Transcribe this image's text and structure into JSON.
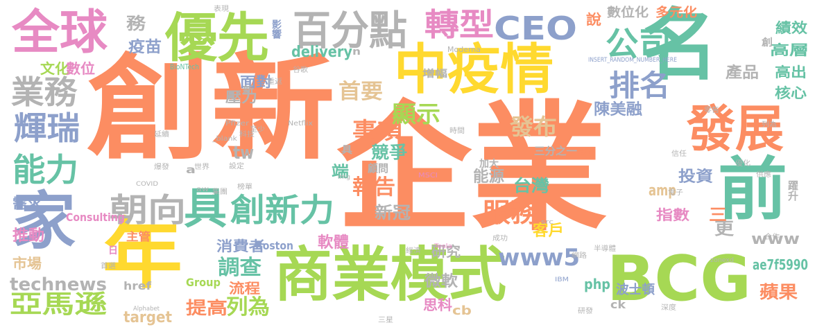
{
  "words": [
    {
      "t": "創新",
      "color": "#fc8d62"
    },
    {
      "t": "企業",
      "color": "#fc8d62"
    },
    {
      "t": "商業模式",
      "color": "#a6d854"
    },
    {
      "t": "名",
      "color": "#66c2a5"
    },
    {
      "t": "中疫情",
      "color": "#ffd92f"
    },
    {
      "t": "優先",
      "color": "#a6d854"
    },
    {
      "t": "全球",
      "color": "#e78ac3"
    },
    {
      "t": "家",
      "color": "#8da0cb"
    },
    {
      "t": "年",
      "color": "#ffd92f"
    },
    {
      "t": "BCG",
      "color": "#a6d854"
    },
    {
      "t": "前",
      "color": "#66c2a5"
    },
    {
      "t": "發展",
      "color": "#fc8d62"
    },
    {
      "t": "百分點",
      "color": "#b3b3b3"
    },
    {
      "t": "轉型",
      "color": "#e78ac3"
    },
    {
      "t": "CEO",
      "color": "#8da0cb"
    },
    {
      "t": "公司",
      "color": "#66c2a5"
    },
    {
      "t": "業務",
      "color": "#b3b3b3"
    },
    {
      "t": "輝瑞",
      "color": "#8da0cb"
    },
    {
      "t": "能力",
      "color": "#66c2a5"
    },
    {
      "t": "朝向",
      "color": "#b3b3b3"
    },
    {
      "t": "具",
      "color": "#66c2a5"
    },
    {
      "t": "創新力",
      "color": "#66c2a5"
    },
    {
      "t": "服務",
      "color": "#fc8d62"
    },
    {
      "t": "排名",
      "color": "#8da0cb"
    },
    {
      "t": "事項",
      "color": "#fc8d62"
    },
    {
      "t": "報告",
      "color": "#fc8d62"
    },
    {
      "t": "首要",
      "color": "#e5c494"
    },
    {
      "t": "顯示",
      "color": "#a6d854"
    },
    {
      "t": "發布",
      "color": "#e5c494"
    },
    {
      "t": "亞馬遜",
      "color": "#a6d854"
    },
    {
      "t": "technews",
      "color": "#b3b3b3"
    },
    {
      "t": "www5",
      "color": "#8da0cb"
    },
    {
      "t": "www",
      "color": "#b3b3b3"
    },
    {
      "t": "調查",
      "color": "#66c2a5"
    },
    {
      "t": "提高",
      "color": "#fc8d62"
    },
    {
      "t": "列為",
      "color": "#a6d854"
    },
    {
      "t": "流程",
      "color": "#fc8d62"
    },
    {
      "t": "微軟",
      "color": "#b3b3b3"
    },
    {
      "t": "投資",
      "color": "#8da0cb"
    },
    {
      "t": "指數",
      "color": "#e78ac3"
    },
    {
      "t": "蘋果",
      "color": "#fc8d62"
    },
    {
      "t": "台灣",
      "color": "#66c2a5"
    },
    {
      "t": "新冠",
      "color": "#b3b3b3"
    },
    {
      "t": "軟體",
      "color": "#e78ac3"
    },
    {
      "t": "能源",
      "color": "#b3b3b3"
    },
    {
      "t": "客戶",
      "color": "#ffd92f"
    },
    {
      "t": "消費者",
      "color": "#8da0cb"
    },
    {
      "t": "產品",
      "color": "#b3b3b3"
    },
    {
      "t": "高出",
      "color": "#66c2a5"
    },
    {
      "t": "核心",
      "color": "#66c2a5"
    },
    {
      "t": "績效",
      "color": "#66c2a5"
    },
    {
      "t": "高層",
      "color": "#66c2a5"
    },
    {
      "t": "數位化",
      "color": "#b3b3b3"
    },
    {
      "t": "多元化",
      "color": "#fc8d62"
    },
    {
      "t": "陳美融",
      "color": "#8da0cb"
    },
    {
      "t": "delivery",
      "color": "#66c2a5"
    },
    {
      "t": "tw",
      "color": "#b3b3b3"
    },
    {
      "t": "amp",
      "color": "#e5c494"
    },
    {
      "t": "ae7f5990",
      "color": "#66c2a5"
    },
    {
      "t": "php",
      "color": "#66c2a5"
    },
    {
      "t": "target",
      "color": "#e5c494"
    },
    {
      "t": "cb",
      "color": "#e5c494"
    },
    {
      "t": "ck",
      "color": "#b3b3b3"
    },
    {
      "t": "Group",
      "color": "#a6d854"
    },
    {
      "t": "href",
      "color": "#b3b3b3"
    },
    {
      "t": "Boston",
      "color": "#8da0cb"
    },
    {
      "t": "Consulting",
      "color": "#e78ac3"
    },
    {
      "t": "研究",
      "color": "#b3b3b3"
    },
    {
      "t": "思科",
      "color": "#e78ac3"
    },
    {
      "t": "波士頓",
      "color": "#8da0cb"
    },
    {
      "t": "競爭",
      "color": "#66c2a5"
    },
    {
      "t": "壓力",
      "color": "#b3b3b3"
    },
    {
      "t": "面對",
      "color": "#8da0cb"
    },
    {
      "t": "影響",
      "color": "#8da0cb"
    },
    {
      "t": "增幅",
      "color": "#b3b3b3"
    },
    {
      "t": "文化",
      "color": "#a6d854"
    },
    {
      "t": "數位",
      "color": "#e78ac3"
    },
    {
      "t": "需求",
      "color": "#8da0cb"
    },
    {
      "t": "推動",
      "color": "#e78ac3"
    },
    {
      "t": "市場",
      "color": "#e5c494"
    },
    {
      "t": "務",
      "color": "#b3b3b3"
    },
    {
      "t": "疫苗",
      "color": "#8da0cb"
    },
    {
      "t": "更",
      "color": "#b3b3b3"
    },
    {
      "t": "說",
      "color": "#fc8d62"
    },
    {
      "t": "主管",
      "color": "#fc8d62"
    },
    {
      "t": "三",
      "color": "#fc8d62"
    },
    {
      "t": "端",
      "color": "#66c2a5"
    },
    {
      "t": "顧問",
      "color": "#b3b3b3"
    },
    {
      "t": "加大",
      "color": "#b3b3b3"
    },
    {
      "t": "躍升",
      "color": "#b3b3b3"
    },
    {
      "t": "創",
      "color": "#b3b3b3"
    },
    {
      "t": "具",
      "color": "#b3b3b3"
    },
    {
      "t": "新",
      "color": "#b3b3b3"
    },
    {
      "t": "a",
      "color": "#b3b3b3"
    },
    {
      "t": "n",
      "color": "#b3b3b3"
    },
    {
      "t": "三分之一",
      "color": "#b3b3b3"
    },
    {
      "t": "Moderna",
      "color": "#b3b3b3"
    },
    {
      "t": "BioNTech",
      "color": "#66c2a5"
    },
    {
      "t": "Pfizer",
      "color": "#b3b3b3"
    },
    {
      "t": "Netflix",
      "color": "#b3b3b3"
    },
    {
      "t": "_blank",
      "color": "#b3b3b3"
    },
    {
      "t": "COVID",
      "color": "#b3b3b3"
    },
    {
      "t": "Tesla",
      "color": "#e78ac3"
    },
    {
      "t": "IBM",
      "color": "#8da0cb"
    },
    {
      "t": "MSCI",
      "color": "#e78ac3"
    },
    {
      "t": "Alphabet",
      "color": "#b3b3b3"
    },
    {
      "t": "zonexd",
      "color": "#b3b3b3"
    },
    {
      "t": "INSERT_RANDOM_NUMBER_HERE",
      "color": "#8da0cb"
    },
    {
      "t": "img",
      "color": "#b3b3b3"
    },
    {
      "t": "src",
      "color": "#b3b3b3"
    },
    {
      "t": "aw",
      "color": "#b3b3b3"
    },
    {
      "t": "日",
      "color": "#e78ac3"
    },
    {
      "t": "優化",
      "color": "#b3b3b3"
    },
    {
      "t": "延續",
      "color": "#b3b3b3"
    },
    {
      "t": "重返",
      "color": "#b3b3b3"
    },
    {
      "t": "列為",
      "color": "#b3b3b3"
    },
    {
      "t": "成功",
      "color": "#b3b3b3"
    },
    {
      "t": "時間",
      "color": "#b3b3b3"
    },
    {
      "t": "至少",
      "color": "#b3b3b3"
    },
    {
      "t": "設定",
      "color": "#b3b3b3"
    },
    {
      "t": "世界",
      "color": "#b3b3b3"
    },
    {
      "t": "爆發",
      "color": "#b3b3b3"
    },
    {
      "t": "谷歌",
      "color": "#b3b3b3"
    },
    {
      "t": "三星",
      "color": "#b3b3b3"
    },
    {
      "t": "首選",
      "color": "#b3b3b3"
    },
    {
      "t": "表現",
      "color": "#b3b3b3"
    },
    {
      "t": "提升",
      "color": "#fc8d62"
    },
    {
      "t": "集團",
      "color": "#b3b3b3"
    },
    {
      "t": "榜單",
      "color": "#b3b3b3"
    },
    {
      "t": "研發",
      "color": "#b3b3b3"
    },
    {
      "t": "供應",
      "color": "#b3b3b3"
    },
    {
      "t": "網路",
      "color": "#b3b3b3"
    },
    {
      "t": "科技",
      "color": "#b3b3b3"
    },
    {
      "t": "電子",
      "color": "#b3b3b3"
    },
    {
      "t": "半導體",
      "color": "#b3b3b3"
    },
    {
      "t": "深度",
      "color": "#b3b3b3"
    },
    {
      "t": "合作",
      "color": "#b3b3b3"
    },
    {
      "t": "信任",
      "color": "#b3b3b3"
    },
    {
      "t": "零售",
      "color": "#b3b3b3"
    },
    {
      "t": "經濟",
      "color": "#b3b3b3"
    }
  ]
}
